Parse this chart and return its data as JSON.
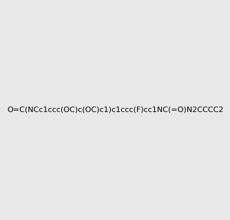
{
  "smiles": "O=C(NCc1ccc(OC)c(OC)c1)c1ccc(F)cc1NC(=O)N2CCCC2",
  "image_size": 300,
  "background_color": "#e8e8e8",
  "title": "",
  "bond_color": "black",
  "atom_colors": {
    "N": "#0000ff",
    "O": "#ff0000",
    "F": "#ff00ff"
  }
}
